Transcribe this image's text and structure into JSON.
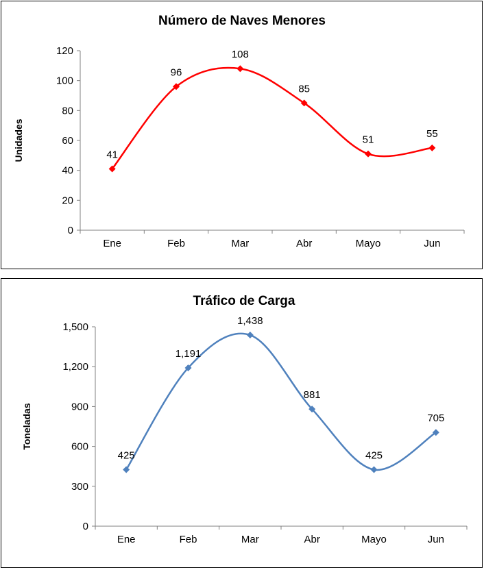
{
  "chart_data": [
    {
      "type": "line",
      "title": "Número de Naves Menores",
      "xlabel": "",
      "ylabel": "Unidades",
      "categories": [
        "Ene",
        "Feb",
        "Mar",
        "Abr",
        "Mayo",
        "Jun"
      ],
      "series": [
        {
          "values": [
            41,
            96,
            108,
            85,
            51,
            55
          ],
          "color": "#ff0000"
        }
      ],
      "data_labels": [
        "41",
        "96",
        "108",
        "85",
        "51",
        "55"
      ],
      "ylim": [
        0,
        120
      ],
      "yticks": [
        0,
        20,
        40,
        60,
        80,
        100,
        120
      ],
      "ytick_labels": [
        "0",
        "20",
        "40",
        "60",
        "80",
        "100",
        "120"
      ],
      "smooth": true,
      "marker": "diamond",
      "grid": false,
      "legend": "none"
    },
    {
      "type": "line",
      "title": "Tráfico de Carga",
      "xlabel": "",
      "ylabel": "Toneladas",
      "categories": [
        "Ene",
        "Feb",
        "Mar",
        "Abr",
        "Mayo",
        "Jun"
      ],
      "series": [
        {
          "values": [
            425,
            1191,
            1438,
            881,
            425,
            705
          ],
          "color": "#4f81bd"
        }
      ],
      "data_labels": [
        "425",
        "1,191",
        "1,438",
        "881",
        "425",
        "705"
      ],
      "ylim": [
        0,
        1500
      ],
      "yticks": [
        0,
        300,
        600,
        900,
        1200,
        1500
      ],
      "ytick_labels": [
        "0",
        "300",
        "600",
        "900",
        "1,200",
        "1,500"
      ],
      "smooth": true,
      "marker": "diamond",
      "grid": false,
      "legend": "none"
    }
  ]
}
